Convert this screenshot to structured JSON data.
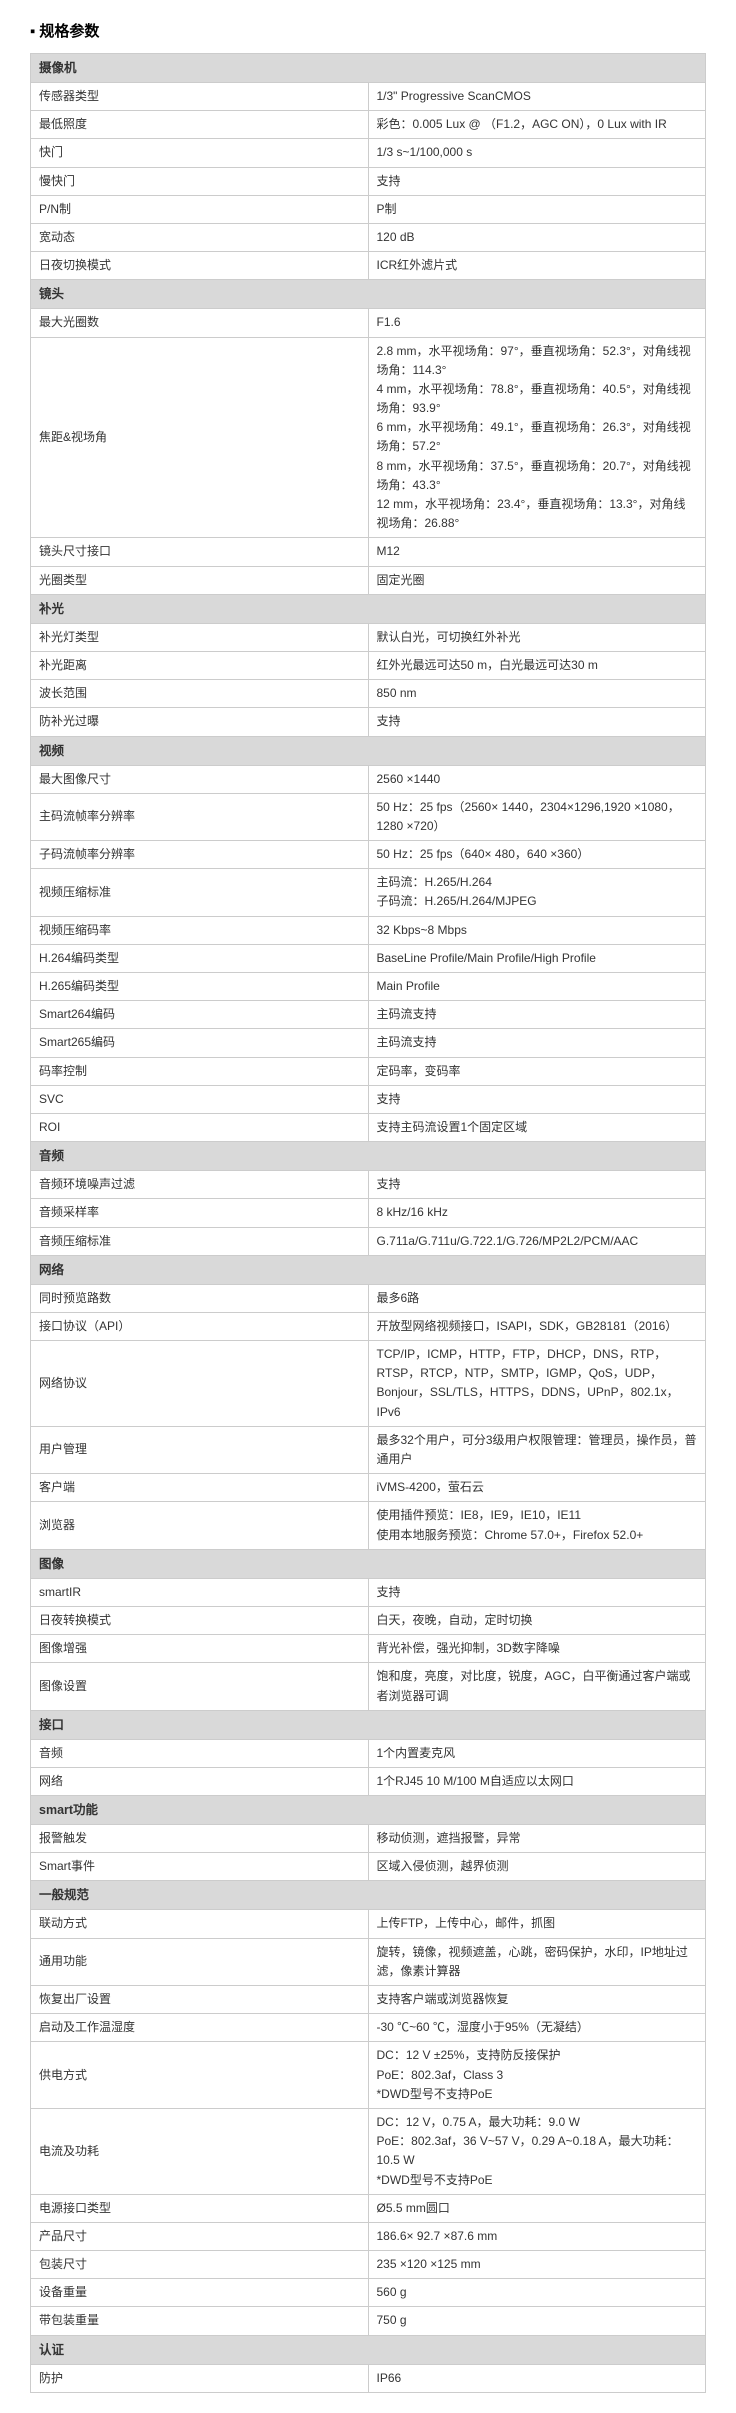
{
  "title": "规格参数",
  "sections": [
    {
      "header": "摄像机",
      "rows": [
        {
          "label": "传感器类型",
          "value": "1/3\" Progressive ScanCMOS"
        },
        {
          "label": "最低照度",
          "value": "彩色：0.005 Lux @ （F1.2，AGC ON），0 Lux with IR"
        },
        {
          "label": "快门",
          "value": "1/3 s~1/100,000 s"
        },
        {
          "label": "慢快门",
          "value": "支持"
        },
        {
          "label": "P/N制",
          "value": "P制"
        },
        {
          "label": "宽动态",
          "value": "120 dB"
        },
        {
          "label": "日夜切换模式",
          "value": "ICR红外滤片式"
        }
      ]
    },
    {
      "header": "镜头",
      "rows": [
        {
          "label": "最大光圈数",
          "value": "F1.6"
        },
        {
          "label": "焦距&视场角",
          "value": "2.8 mm，水平视场角：97°，垂直视场角：52.3°，对角线视场角：114.3°\n4 mm，水平视场角：78.8°，垂直视场角：40.5°，对角线视场角：93.9°\n6 mm，水平视场角：49.1°，垂直视场角：26.3°，对角线视场角：57.2°\n8 mm，水平视场角：37.5°，垂直视场角：20.7°，对角线视场角：43.3°\n12 mm，水平视场角：23.4°，垂直视场角：13.3°，对角线视场角：26.88°",
          "multiline": true
        },
        {
          "label": "镜头尺寸接口",
          "value": "M12"
        },
        {
          "label": "光圈类型",
          "value": "固定光圈"
        }
      ]
    },
    {
      "header": "补光",
      "rows": [
        {
          "label": "补光灯类型",
          "value": "默认白光，可切换红外补光"
        },
        {
          "label": "补光距离",
          "value": "红外光最远可达50 m，白光最远可达30 m"
        },
        {
          "label": "波长范围",
          "value": "850 nm"
        },
        {
          "label": "防补光过曝",
          "value": "支持"
        }
      ]
    },
    {
      "header": "视频",
      "rows": [
        {
          "label": "最大图像尺寸",
          "value": "2560 ×1440"
        },
        {
          "label": "主码流帧率分辨率",
          "value": "50 Hz：25 fps（2560× 1440，2304×1296,1920 ×1080，1280 ×720）"
        },
        {
          "label": "子码流帧率分辨率",
          "value": "50 Hz：25 fps（640× 480，640 ×360）"
        },
        {
          "label": "视频压缩标准",
          "value": "主码流：H.265/H.264\n子码流：H.265/H.264/MJPEG",
          "multiline": true
        },
        {
          "label": "视频压缩码率",
          "value": "32 Kbps~8 Mbps"
        },
        {
          "label": "H.264编码类型",
          "value": "BaseLine Profile/Main Profile/High Profile"
        },
        {
          "label": "H.265编码类型",
          "value": "Main Profile"
        },
        {
          "label": "Smart264编码",
          "value": "主码流支持"
        },
        {
          "label": "Smart265编码",
          "value": "主码流支持"
        },
        {
          "label": "码率控制",
          "value": "定码率，变码率"
        },
        {
          "label": "SVC",
          "value": "支持"
        },
        {
          "label": "ROI",
          "value": "支持主码流设置1个固定区域"
        }
      ]
    },
    {
      "header": "音频",
      "rows": [
        {
          "label": "音频环境噪声过滤",
          "value": "支持"
        },
        {
          "label": "音频采样率",
          "value": "8 kHz/16 kHz"
        },
        {
          "label": "音频压缩标准",
          "value": "G.711a/G.711u/G.722.1/G.726/MP2L2/PCM/AAC"
        }
      ]
    },
    {
      "header": "网络",
      "rows": [
        {
          "label": "同时预览路数",
          "value": "最多6路"
        },
        {
          "label": "接口协议（API）",
          "value": "开放型网络视频接口，ISAPI，SDK，GB28181（2016）"
        },
        {
          "label": "网络协议",
          "value": "TCP/IP，ICMP，HTTP，FTP，DHCP，DNS，RTP，RTSP，RTCP，NTP，SMTP，IGMP，QoS，UDP，Bonjour，SSL/TLS，HTTPS，DDNS，UPnP，802.1x，IPv6",
          "multiline": true
        },
        {
          "label": "用户管理",
          "value": "最多32个用户，可分3级用户权限管理：管理员，操作员，普通用户"
        },
        {
          "label": "客户端",
          "value": "iVMS-4200，萤石云"
        },
        {
          "label": "浏览器",
          "value": "使用插件预览：IE8，IE9，IE10，IE11\n使用本地服务预览：Chrome 57.0+，Firefox 52.0+",
          "multiline": true
        }
      ]
    },
    {
      "header": "图像",
      "rows": [
        {
          "label": "smartIR",
          "value": "支持"
        },
        {
          "label": "日夜转换模式",
          "value": "白天，夜晚，自动，定时切换"
        },
        {
          "label": "图像增强",
          "value": "背光补偿，强光抑制，3D数字降噪"
        },
        {
          "label": "图像设置",
          "value": "饱和度，亮度，对比度，锐度，AGC，白平衡通过客户端或者浏览器可调"
        }
      ]
    },
    {
      "header": "接口",
      "rows": [
        {
          "label": "音频",
          "value": "1个内置麦克风"
        },
        {
          "label": "网络",
          "value": "1个RJ45 10 M/100 M自适应以太网口"
        }
      ]
    },
    {
      "header": "smart功能",
      "rows": [
        {
          "label": "报警触发",
          "value": "移动侦测，遮挡报警，异常"
        },
        {
          "label": "Smart事件",
          "value": "区域入侵侦测，越界侦测"
        }
      ]
    },
    {
      "header": "一般规范",
      "rows": [
        {
          "label": "联动方式",
          "value": "上传FTP，上传中心，邮件，抓图"
        },
        {
          "label": "通用功能",
          "value": "旋转，镜像，视频遮盖，心跳，密码保护，水印，IP地址过滤，像素计算器"
        },
        {
          "label": "恢复出厂设置",
          "value": "支持客户端或浏览器恢复"
        },
        {
          "label": "启动及工作温湿度",
          "value": "-30 ℃~60 ℃，湿度小于95%（无凝结）"
        },
        {
          "label": "供电方式",
          "value": "DC：12 V ±25%，支持防反接保护\nPoE：802.3af，Class 3\n*DWD型号不支持PoE",
          "multiline": true
        },
        {
          "label": "电流及功耗",
          "value": "DC：12 V，0.75 A，最大功耗：9.0 W\nPoE：802.3af，36 V~57 V，0.29 A~0.18 A，最大功耗：10.5 W\n*DWD型号不支持PoE",
          "multiline": true
        },
        {
          "label": "电源接口类型",
          "value": "Ø5.5 mm圆口"
        },
        {
          "label": "产品尺寸",
          "value": "186.6× 92.7 ×87.6 mm"
        },
        {
          "label": "包装尺寸",
          "value": "235 ×120 ×125 mm"
        },
        {
          "label": "设备重量",
          "value": "560 g"
        },
        {
          "label": "带包装重量",
          "value": "750 g"
        }
      ]
    },
    {
      "header": "认证",
      "rows": [
        {
          "label": "防护",
          "value": "IP66"
        }
      ]
    }
  ],
  "colors": {
    "section_bg": "#d9d9d9",
    "border": "#cccccc",
    "text": "#333333",
    "background": "#ffffff"
  }
}
